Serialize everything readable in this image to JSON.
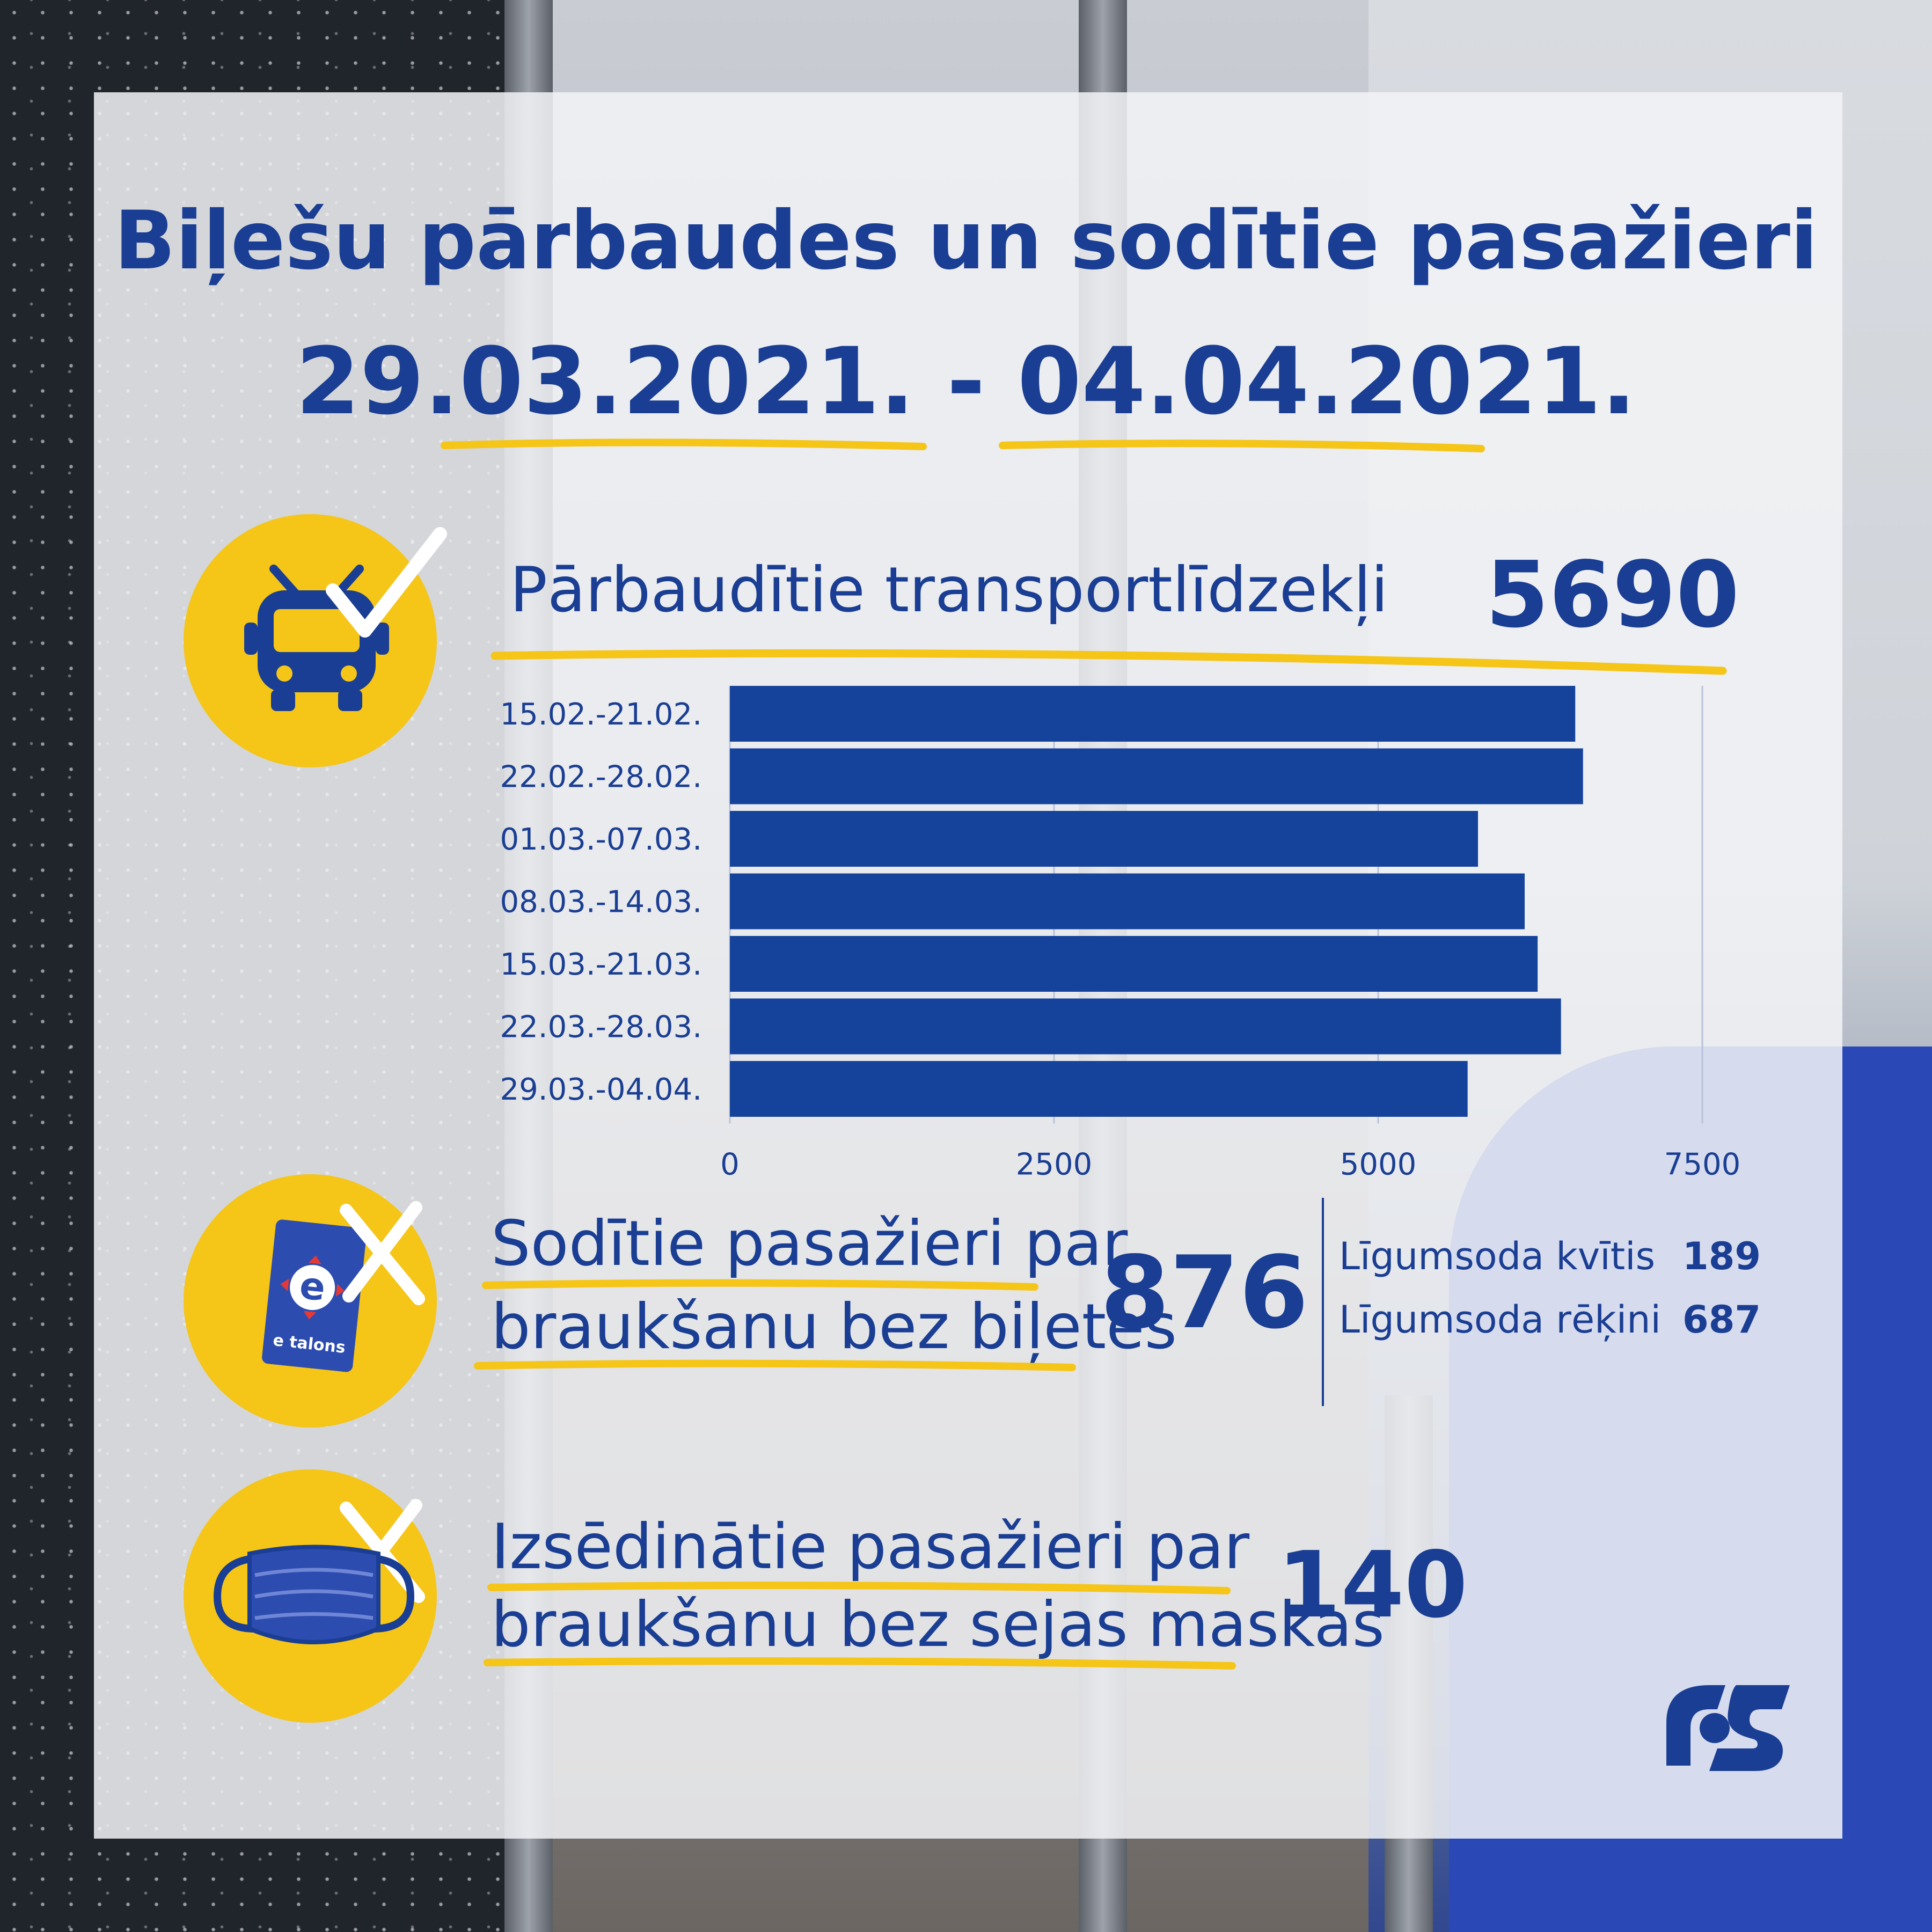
{
  "title": "Biļešu pārbaudes un sodītie pasažieri",
  "date_range": "29.03.2021. - 04.04.2021.",
  "inspected": {
    "label": "Pārbaudītie transportlīdzekļi",
    "value": "5690"
  },
  "fined": {
    "label_line1": "Sodītie pasažieri par",
    "label_line2": "braukšanu bez biļetes",
    "value": "876",
    "breakdown": [
      {
        "label": "Līgumsoda kvītis",
        "value": "189"
      },
      {
        "label": "Līgumsoda rēķini",
        "value": "687"
      }
    ],
    "card_brand": "e talons"
  },
  "removed": {
    "label_line1": "Izsēdinātie pasažieri par",
    "label_line2": "braukšanu bez sejas maskas",
    "value": "140"
  },
  "icons": [
    "bus-icon",
    "checkmark-icon",
    "etalons-card-icon",
    "cross-icon",
    "face-mask-icon",
    "rs-logo-icon"
  ],
  "colors": {
    "primary": "#1a3e93",
    "accent": "#f5c518",
    "bar": "#15439b"
  },
  "chart_data": {
    "type": "bar",
    "orientation": "horizontal",
    "categories": [
      "15.02.-21.02.",
      "22.02.-28.02.",
      "01.03.-07.03.",
      "08.03.-14.03.",
      "15.03.-21.03.",
      "22.03.-28.03.",
      "29.03.-04.04."
    ],
    "values": [
      6520,
      6580,
      5770,
      6130,
      6230,
      6410,
      5690
    ],
    "xlim": [
      0,
      7500
    ],
    "xticks": [
      "0",
      "2500",
      "5000",
      "7500"
    ],
    "grid": true
  }
}
